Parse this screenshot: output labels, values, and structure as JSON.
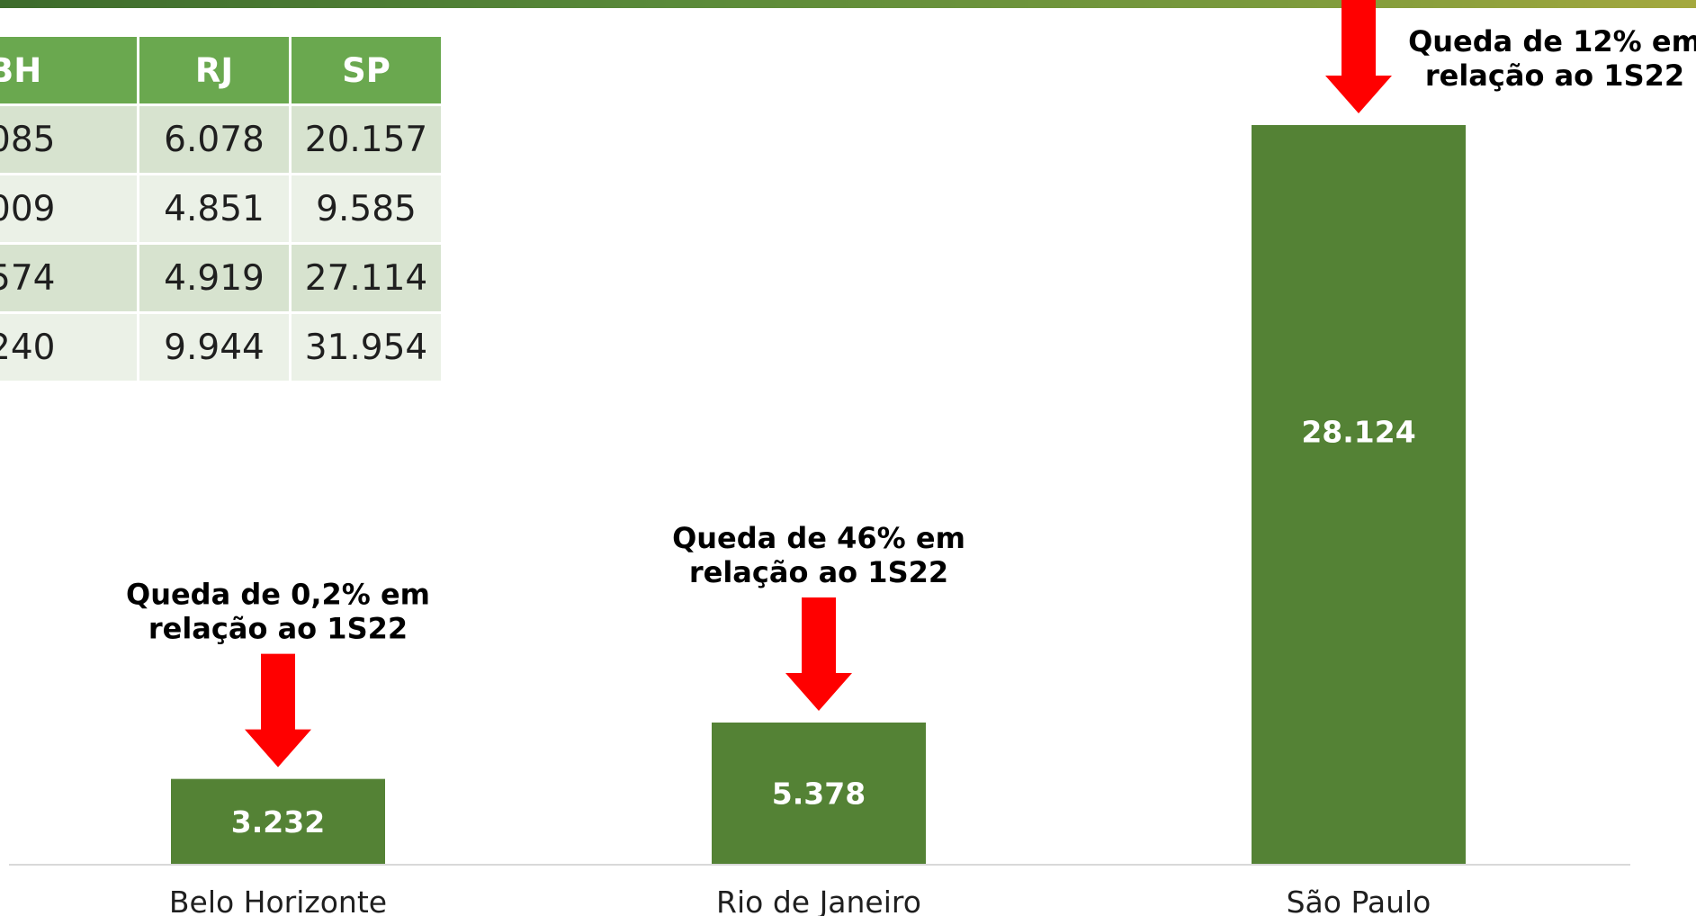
{
  "table": {
    "headers": [
      "BH",
      "RJ",
      "SP"
    ],
    "rows": [
      [
        "085",
        "6.078",
        "20.157"
      ],
      [
        "009",
        "4.851",
        "9.585"
      ],
      [
        "574",
        "4.919",
        "27.114"
      ],
      [
        "240",
        "9.944",
        "31.954"
      ]
    ]
  },
  "chart_data": {
    "type": "bar",
    "categories": [
      "Belo Horizonte",
      "Rio de Janeiro",
      "São Paulo"
    ],
    "values": [
      3232,
      5378,
      28124
    ],
    "value_labels": [
      "3.232",
      "5.378",
      "28.124"
    ],
    "ylim": [
      0,
      28124
    ],
    "grid": false,
    "legend": "none",
    "annotations": [
      {
        "category": "Belo Horizonte",
        "lines": [
          "Queda de 0,2% em",
          "relação ao 1S22"
        ],
        "marker": "red-down-arrow"
      },
      {
        "category": "Rio de Janeiro",
        "lines": [
          "Queda de 46% em",
          "relação ao 1S22"
        ],
        "marker": "red-down-arrow"
      },
      {
        "category": "São Paulo",
        "lines": [
          "Queda de 12% em",
          "relação ao 1S22"
        ],
        "marker": "red-down-arrow"
      }
    ]
  },
  "colors": {
    "bar": "#548235",
    "header": "#6aa84f",
    "arrow": "#ff0000",
    "row_odd": "#d7e3cf",
    "row_even": "#ebf1e7"
  }
}
